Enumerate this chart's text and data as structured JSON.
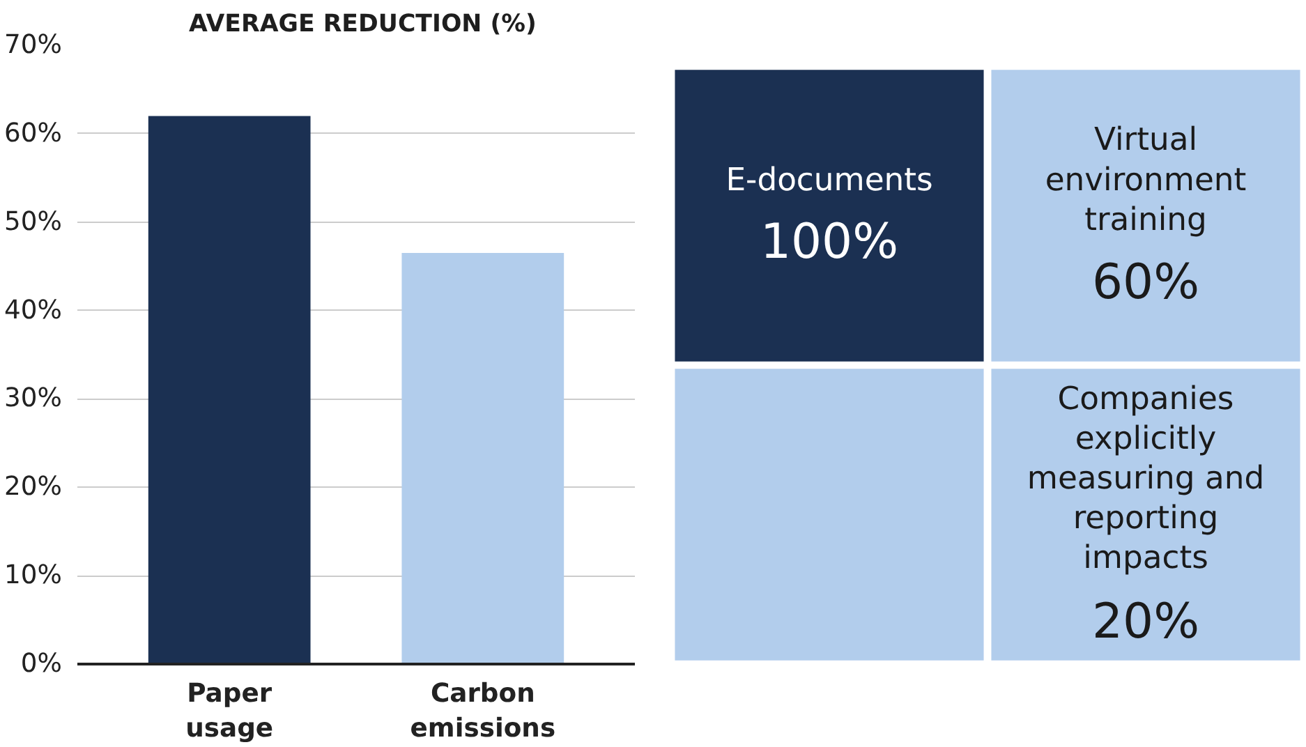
{
  "chart_data": [
    {
      "type": "bar",
      "title": "AVERAGE REDUCTION (%)",
      "categories": [
        "Paper usage",
        "Carbon emissions"
      ],
      "values": [
        62,
        46.5
      ],
      "colors": [
        "#1b3052",
        "#b2cdec"
      ],
      "ylim": [
        0,
        70
      ],
      "yticks": [
        {
          "value": 0,
          "label": "0%"
        },
        {
          "value": 10,
          "label": "10%"
        },
        {
          "value": 20,
          "label": "20%"
        },
        {
          "value": 30,
          "label": "30%"
        },
        {
          "value": 40,
          "label": "40%"
        },
        {
          "value": 50,
          "label": "50%"
        },
        {
          "value": 60,
          "label": "60%"
        },
        {
          "value": 70,
          "label": "70%"
        }
      ],
      "grid": "y"
    },
    {
      "type": "other",
      "categories": [
        "E-documents",
        "Virtual environment training",
        null,
        "Companies explicitly measuring and reporting impacts"
      ],
      "values": [
        100,
        60,
        null,
        20
      ],
      "value_labels": [
        "100%",
        "60%",
        null,
        "20%"
      ],
      "colors": [
        "#1b3052",
        "#b2cdec",
        "#b2cdec",
        "#b2cdec"
      ]
    }
  ]
}
